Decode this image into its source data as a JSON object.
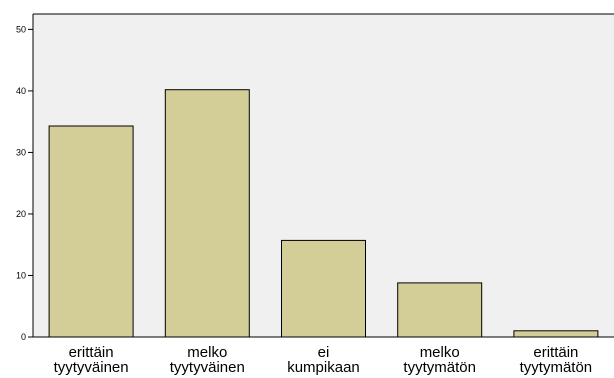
{
  "chart_data": {
    "type": "bar",
    "categories": [
      [
        "erittäin",
        "tyytyväinen"
      ],
      [
        "melko",
        "tyytyväinen"
      ],
      [
        "ei",
        "kumpikaan"
      ],
      [
        "melko",
        "tyytymätön"
      ],
      [
        "erittäin",
        "tyytymätön"
      ]
    ],
    "values": [
      34.3,
      40.2,
      15.7,
      8.8,
      1.0
    ],
    "yticks": [
      0,
      10,
      20,
      30,
      40,
      50
    ],
    "ylim": [
      0,
      52.5
    ],
    "grid": false,
    "colors": {
      "plot_background": "#F0F0F0",
      "bar_fill": "#D3CE97",
      "bar_stroke": "#000000"
    }
  }
}
